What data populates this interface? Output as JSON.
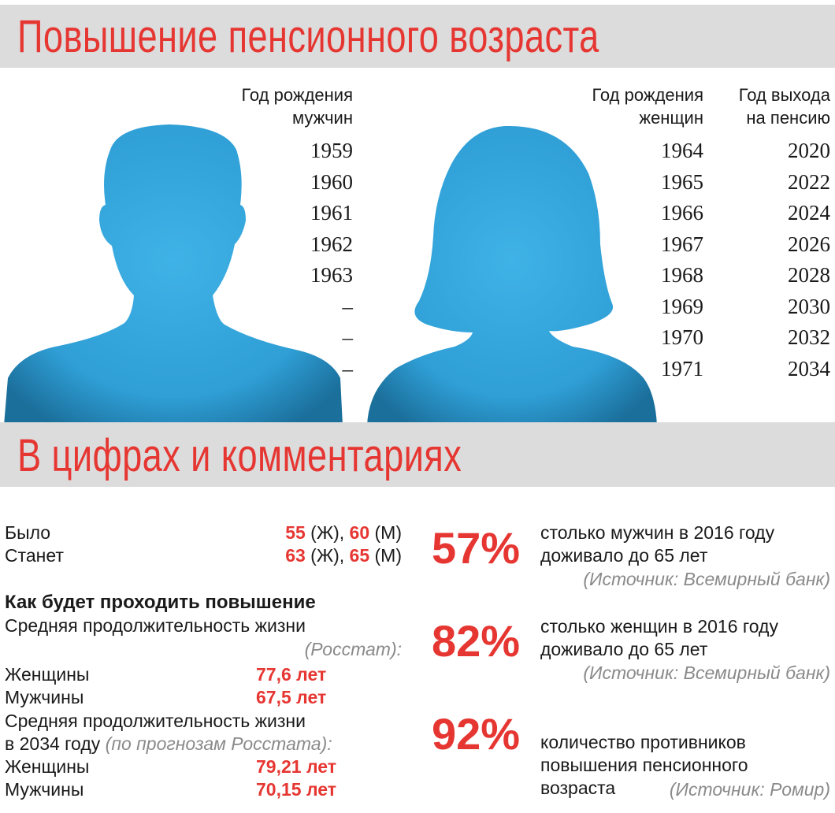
{
  "title_top": "Повышение пенсионного возраста",
  "title_bottom": "В цифрах и комментариях",
  "men": {
    "header_line1": "Год рождения",
    "header_line2": "мужчин",
    "years": [
      "1959",
      "1960",
      "1961",
      "1962",
      "1963",
      "–",
      "–",
      "–"
    ]
  },
  "women": {
    "header_line1": "Год рождения",
    "header_line2": "женщин",
    "years": [
      "1964",
      "1965",
      "1966",
      "1967",
      "1968",
      "1969",
      "1970",
      "1971"
    ]
  },
  "retire": {
    "header_line1": "Год выхода",
    "header_line2": "на пенсию",
    "years": [
      "2020",
      "2022",
      "2024",
      "2026",
      "2028",
      "2030",
      "2032",
      "2034"
    ]
  },
  "stats": {
    "was_label": "Было",
    "was_w": "55",
    "was_w_suffix": " (Ж), ",
    "was_m": "60",
    "was_m_suffix": " (М)",
    "will_label": "Станет",
    "will_w": "63",
    "will_w_suffix": " (Ж), ",
    "will_m": "65",
    "will_m_suffix": " (М)",
    "how_heading": "Как будет проходить повышение",
    "life_label": "Средняя продолжительность жизни",
    "life_source": "(Росстат):",
    "women_label": "Женщины",
    "women_value": "77,6 лет",
    "men_label": "Мужчины",
    "men_value": "67,5 лет",
    "life2034_line1": "Средняя продолжительность жизни",
    "life2034_line2": "в 2034 году ",
    "life2034_source": "(по прогнозам Росстата):",
    "women2034_label": "Женщины",
    "women2034_value": "79,21 лет",
    "men2034_label": "Мужчины",
    "men2034_value": "70,15 лет"
  },
  "facts": [
    {
      "percent": "57%",
      "line1": "столько мужчин в 2016 году",
      "line2": "доживало до 65 лет",
      "line3": "",
      "source": "(Источник: Всемирный банк)"
    },
    {
      "percent": "82%",
      "line1": "столько женщин в 2016 году",
      "line2": "доживало до 65 лет",
      "line3": "",
      "source": "(Источник: Всемирный банк)"
    },
    {
      "percent": "92%",
      "line1": "количество противников",
      "line2": "повышения пенсионного",
      "line3": "возраста",
      "source": "(Источник: Ромир)"
    }
  ],
  "colors": {
    "accent": "#e63632",
    "band": "#dcdcdc",
    "silhouette": "#3aa8dc"
  }
}
